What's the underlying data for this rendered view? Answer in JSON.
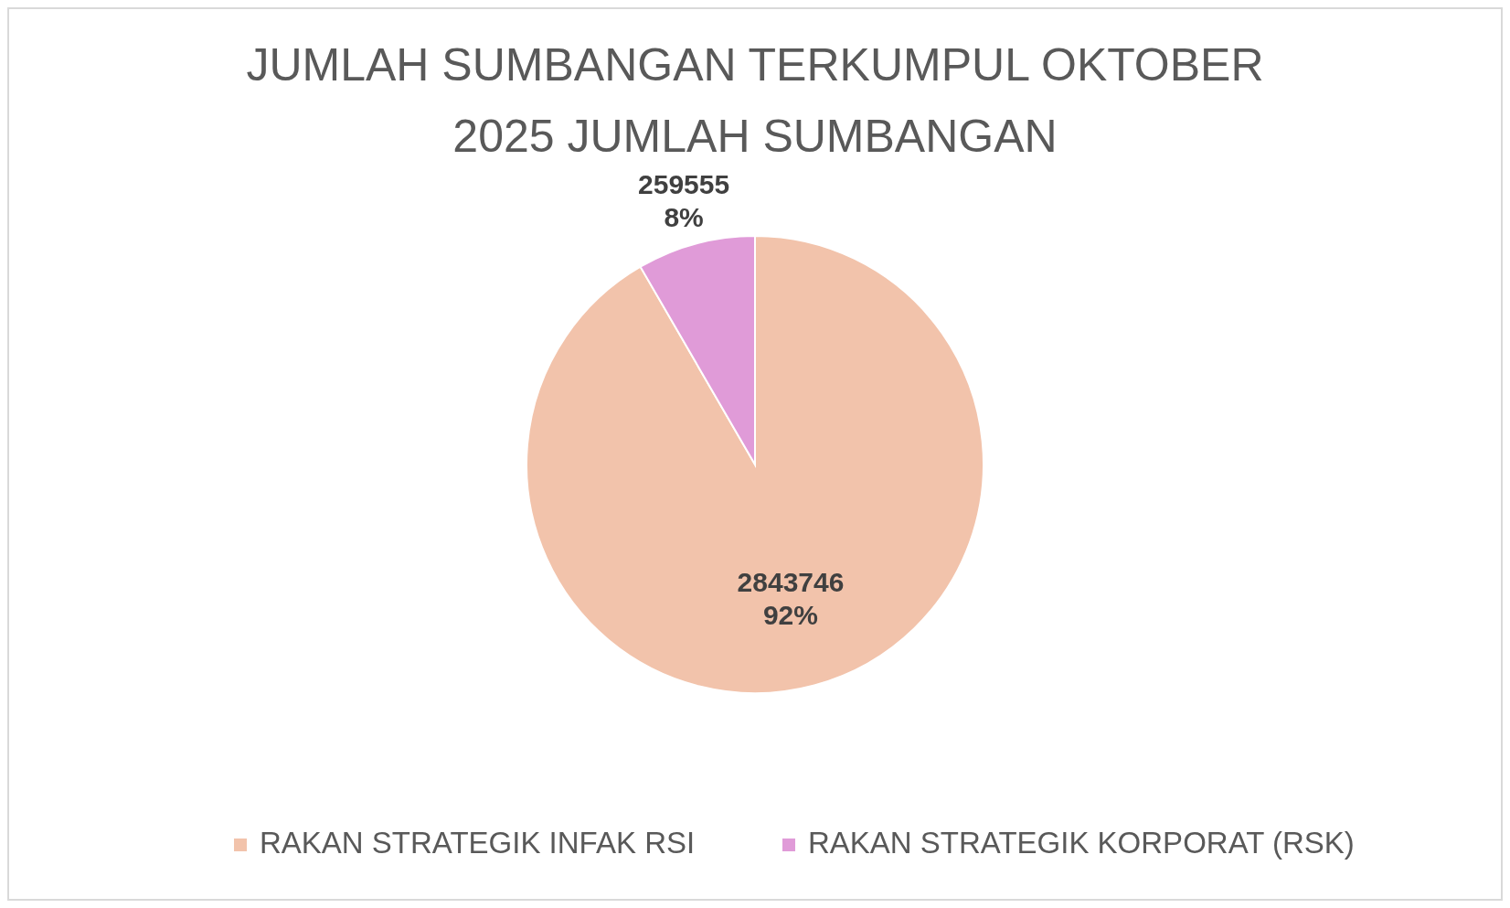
{
  "chart_data": {
    "type": "pie",
    "title": "JUMLAH SUMBANGAN TERKUMPUL OKTOBER\n2025 JUMLAH SUMBANGAN",
    "categories": [
      "RAKAN STRATEGIK INFAK RSI",
      "RAKAN STRATEGIK KORPORAT (RSK)"
    ],
    "values": [
      2843746,
      259555
    ],
    "colors": [
      "#f2c3ab",
      "#e09bd8"
    ],
    "value_labels": [
      "2843746\n92%",
      "259555\n8%"
    ],
    "legend": "bottom"
  }
}
